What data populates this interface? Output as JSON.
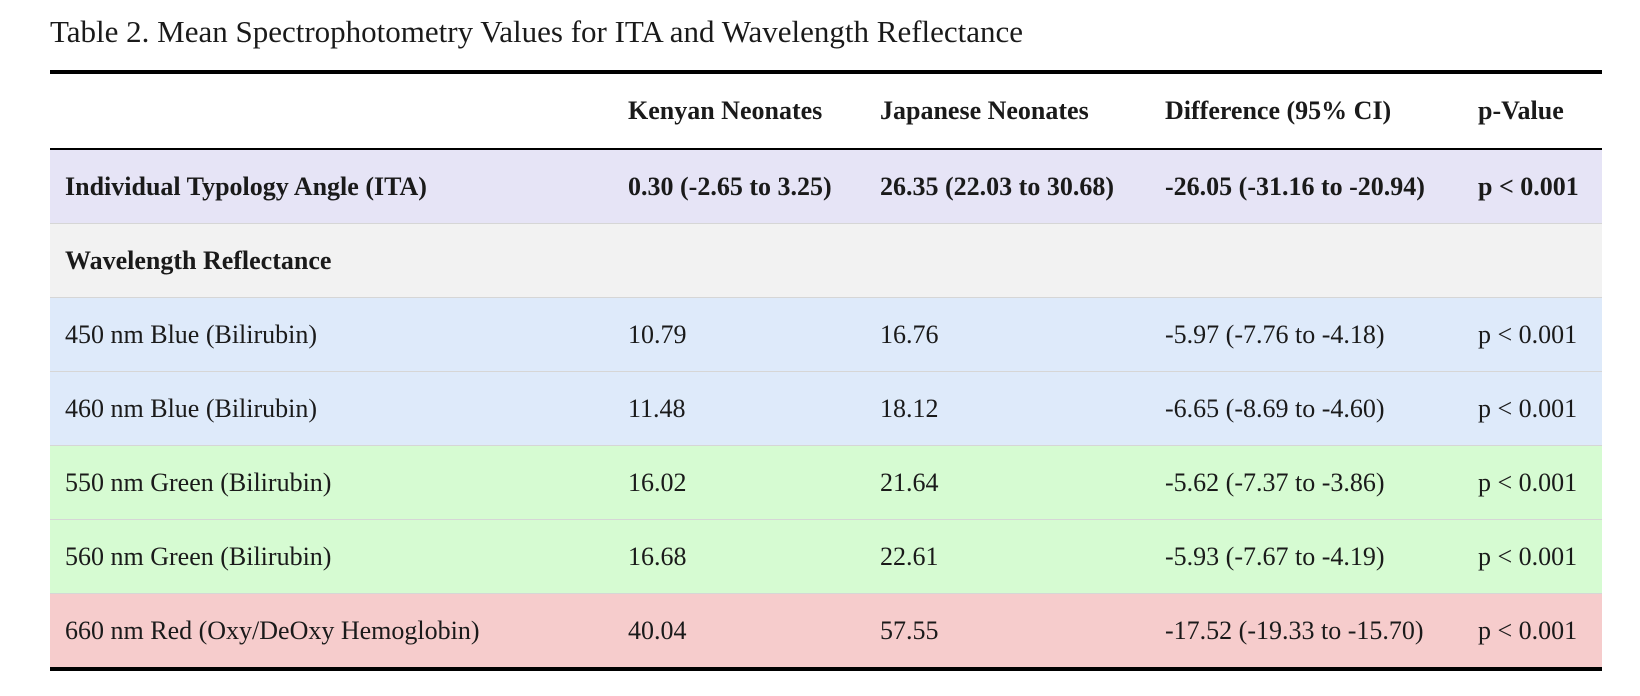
{
  "caption": "Table 2. Mean Spectrophotometry Values for ITA and Wavelength Reflectance",
  "columns": [
    "",
    "Kenyan Neonates",
    "Japanese Neonates",
    "Difference (95% CI)",
    "p-Value"
  ],
  "rows": [
    {
      "label": "Individual Typology Angle (ITA)",
      "kenyan": "0.30 (-2.65 to 3.25)",
      "japanese": "26.35 (22.03 to 30.68)",
      "difference": "-26.05 (-31.16 to -20.94)",
      "p": "p < 0.001",
      "bg": "#e6e4f6"
    },
    {
      "label": "Wavelength Reflectance",
      "kenyan": "",
      "japanese": "",
      "difference": "",
      "p": "",
      "bg": "#f2f2f2"
    },
    {
      "label": "450 nm Blue (Bilirubin)",
      "kenyan": "10.79",
      "japanese": "16.76",
      "difference": "-5.97 (-7.76 to -4.18)",
      "p": "p < 0.001",
      "bg": "#deeafa"
    },
    {
      "label": "460 nm Blue (Bilirubin)",
      "kenyan": "11.48",
      "japanese": "18.12",
      "difference": "-6.65 (-8.69 to -4.60)",
      "p": "p < 0.001",
      "bg": "#deeafa"
    },
    {
      "label": "550 nm Green (Bilirubin)",
      "kenyan": "16.02",
      "japanese": "21.64",
      "difference": "-5.62 (-7.37 to -3.86)",
      "p": "p < 0.001",
      "bg": "#d6fbd2"
    },
    {
      "label": "560 nm Green (Bilirubin)",
      "kenyan": "16.68",
      "japanese": "22.61",
      "difference": "-5.93 (-7.67 to -4.19)",
      "p": "p < 0.001",
      "bg": "#d6fbd2"
    },
    {
      "label": "660 nm Red (Oxy/DeOxy Hemoglobin)",
      "kenyan": "40.04",
      "japanese": "57.55",
      "difference": "-17.52 (-19.33 to -15.70)",
      "p": "p < 0.001",
      "bg": "#f6cccc"
    }
  ]
}
